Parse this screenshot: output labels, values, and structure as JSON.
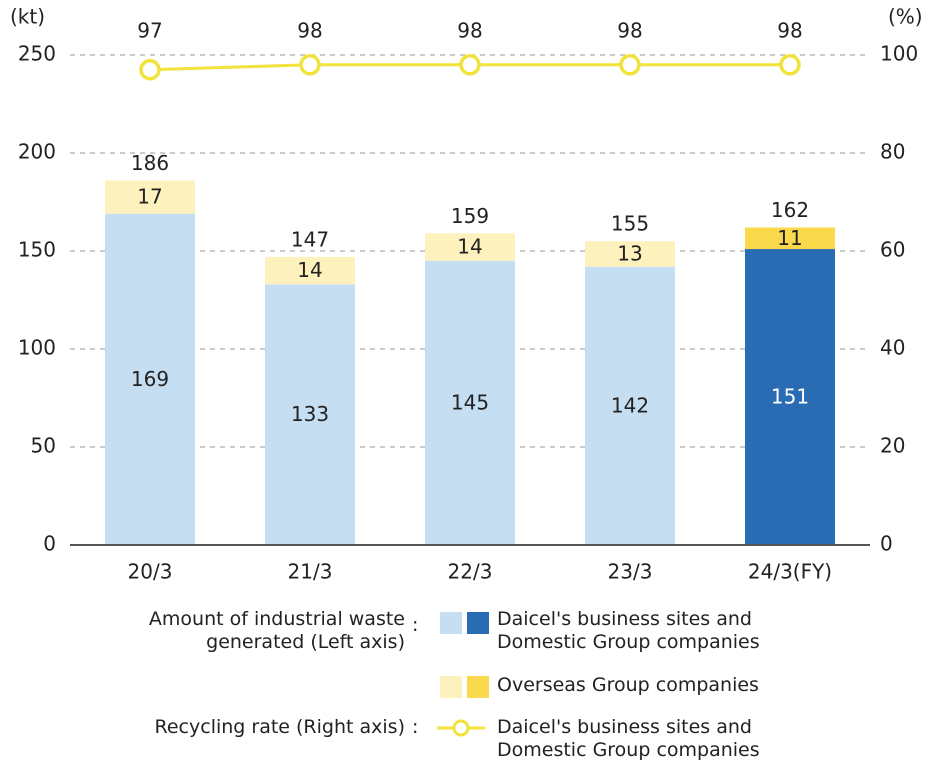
{
  "chart_data": {
    "type": "bar",
    "stacked": true,
    "ylabel": "(kt)",
    "y2label": "(%)",
    "categories": [
      "20/3",
      "21/3",
      "22/3",
      "23/3",
      "24/3(FY)"
    ],
    "ylim": [
      0,
      250
    ],
    "yticks": [
      0,
      50,
      100,
      150,
      200,
      250
    ],
    "y2lim": [
      0,
      100
    ],
    "y2ticks": [
      0,
      20,
      40,
      60,
      80,
      100
    ],
    "grid": true,
    "series": [
      {
        "name": "Daicel's business sites and\nDomestic Group companies",
        "type": "bar",
        "colors": [
          "#c5def2",
          "#c5def2",
          "#c5def2",
          "#c5def2",
          "#2a6cb3"
        ],
        "values": [
          169,
          133,
          145,
          142,
          151
        ]
      },
      {
        "name": "Overseas Group companies",
        "type": "bar",
        "colors": [
          "#fdf1bd",
          "#fdf1bd",
          "#fdf1bd",
          "#fdf1bd",
          "#fad94c"
        ],
        "values": [
          17,
          14,
          14,
          13,
          11
        ]
      },
      {
        "name": "Daicel's business sites and\nDomestic Group companies",
        "type": "line",
        "axis": "y2",
        "color": "#f1e23c",
        "values": [
          97,
          98,
          98,
          98,
          98
        ]
      }
    ],
    "totals": [
      186,
      147,
      159,
      155,
      162
    ],
    "legend": {
      "bar_group": "Amount of industrial waste\ngenerated (Left axis)",
      "line_group": "Recycling rate (Right axis)",
      "separator": ":"
    }
  }
}
